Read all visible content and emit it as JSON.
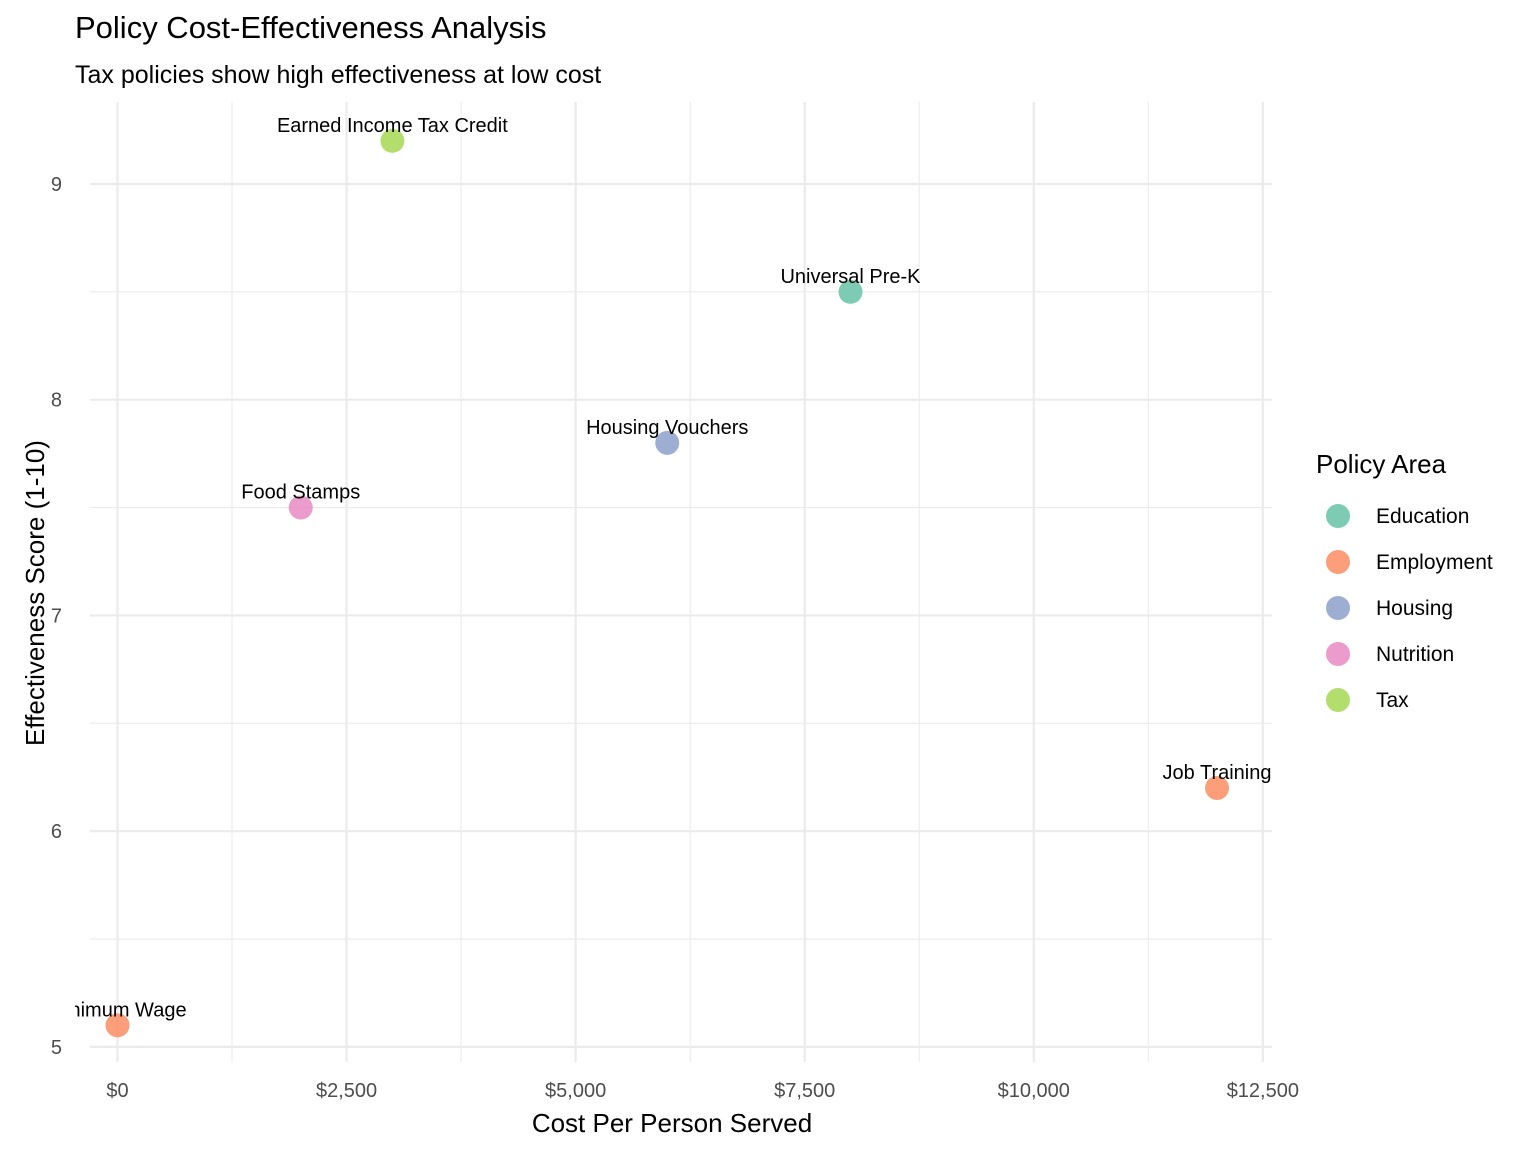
{
  "chart_data": {
    "type": "scatter",
    "title": "Policy Cost-Effectiveness Analysis",
    "subtitle": "Tax policies show high effectiveness at low cost",
    "xlabel": "Cost Per Person Served",
    "ylabel": "Effectiveness Score (1-10)",
    "xlim": [
      -300,
      12600
    ],
    "ylim": [
      4.93,
      9.38
    ],
    "x_ticks": [
      0,
      2500,
      5000,
      7500,
      10000,
      12500
    ],
    "x_tick_labels": [
      "$0",
      "$2,500",
      "$5,000",
      "$7,500",
      "$10,000",
      "$12,500"
    ],
    "y_ticks": [
      5,
      6,
      7,
      8,
      9
    ],
    "y_tick_labels": [
      "5",
      "6",
      "7",
      "8",
      "9"
    ],
    "grid": true,
    "legend": {
      "title": "Policy Area",
      "position": "right",
      "entries": [
        {
          "name": "Education",
          "color": "#66c2a5"
        },
        {
          "name": "Employment",
          "color": "#fc8d62"
        },
        {
          "name": "Housing",
          "color": "#8da0cb"
        },
        {
          "name": "Nutrition",
          "color": "#e78ac3"
        },
        {
          "name": "Tax",
          "color": "#a6d854"
        }
      ]
    },
    "points": [
      {
        "label": "Earned Income Tax Credit",
        "area": "Tax",
        "x": 3000,
        "y": 9.2
      },
      {
        "label": "Universal Pre-K",
        "area": "Education",
        "x": 8000,
        "y": 8.5
      },
      {
        "label": "Housing Vouchers",
        "area": "Housing",
        "x": 6000,
        "y": 7.8
      },
      {
        "label": "Food Stamps",
        "area": "Nutrition",
        "x": 2000,
        "y": 7.5
      },
      {
        "label": "Job Training",
        "area": "Employment",
        "x": 12000,
        "y": 6.2
      },
      {
        "label": "Minimum Wage",
        "area": "Employment",
        "x": 0,
        "y": 5.1
      }
    ]
  }
}
